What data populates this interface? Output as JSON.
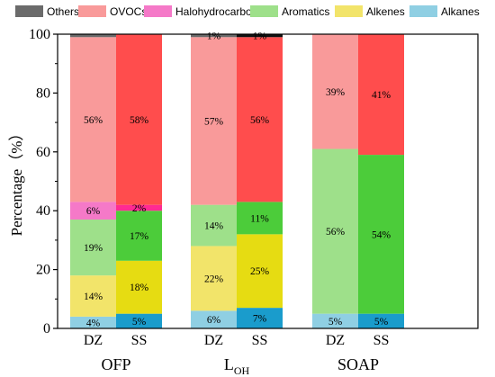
{
  "chart_data": {
    "type": "bar",
    "stacked": true,
    "ylabel": "Percentage（%）",
    "ylim": [
      0,
      100
    ],
    "yticks": [
      "0",
      "20",
      "40",
      "60",
      "80",
      "100"
    ],
    "legend_position": "top",
    "series_order": [
      "Alkanes",
      "Alkenes",
      "Aromatics",
      "Halohydrocarbons",
      "OVOCs",
      "Others"
    ],
    "legend": [
      {
        "name": "Others",
        "color": "#6b6b6b"
      },
      {
        "name": "OVOCs",
        "color": "#f99a9a"
      },
      {
        "name": "Halohydrocarbons",
        "color": "#f579c8"
      },
      {
        "name": "Aromatics",
        "color": "#9ee08a"
      },
      {
        "name": "Alkenes",
        "color": "#f2e46a"
      },
      {
        "name": "Alkanes",
        "color": "#8fcfe3"
      }
    ],
    "groups": [
      {
        "label_main": "OFP",
        "label_sub": "",
        "bars": [
          {
            "category": "DZ",
            "variant": "light",
            "values": [
              4,
              14,
              19,
              6,
              56,
              1
            ],
            "labels": [
              "4%",
              "14%",
              "19%",
              "6%",
              "56%",
              ""
            ]
          },
          {
            "category": "SS",
            "variant": "dark",
            "values": [
              5,
              18,
              17,
              2,
              58,
              0
            ],
            "labels": [
              "5%",
              "18%",
              "17%",
              "2%",
              "58%",
              ""
            ]
          }
        ]
      },
      {
        "label_main": "L",
        "label_sub": "OH",
        "bars": [
          {
            "category": "DZ",
            "variant": "light",
            "values": [
              6,
              22,
              14,
              0,
              57,
              1
            ],
            "labels": [
              "6%",
              "22%",
              "14%",
              "",
              "57%",
              "1%"
            ]
          },
          {
            "category": "SS",
            "variant": "dark",
            "values": [
              7,
              25,
              11,
              0,
              56,
              1
            ],
            "labels": [
              "7%",
              "25%",
              "11%",
              "",
              "56%",
              "1%"
            ]
          }
        ]
      },
      {
        "label_main": "SOAP",
        "label_sub": "",
        "bars": [
          {
            "category": "DZ",
            "variant": "light",
            "values": [
              5,
              0,
              56,
              0,
              39,
              0
            ],
            "labels": [
              "5%",
              "",
              "56%",
              "",
              "39%",
              ""
            ]
          },
          {
            "category": "SS",
            "variant": "dark",
            "values": [
              5,
              0,
              54,
              0,
              41,
              0
            ],
            "labels": [
              "5%",
              "",
              "54%",
              "",
              "41%",
              ""
            ]
          }
        ]
      }
    ],
    "colors": {
      "light": {
        "Alkanes": "#8fcfe3",
        "Alkenes": "#f2e46a",
        "Aromatics": "#9ee08a",
        "Halohydrocarbons": "#f579c8",
        "OVOCs": "#f99a9a",
        "Others": "#6b6b6b"
      },
      "dark": {
        "Alkanes": "#1a9ccc",
        "Alkenes": "#e6dc12",
        "Aromatics": "#4ccc3a",
        "Halohydrocarbons": "#ff2a93",
        "OVOCs": "#ff4d4d",
        "Others": "#111111"
      }
    }
  }
}
